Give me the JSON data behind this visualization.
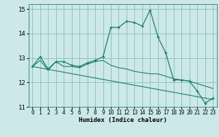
{
  "xlabel": "Humidex (Indice chaleur)",
  "bg_color": "#cce8e8",
  "line_color": "#1a7a6e",
  "grid_color": "#88bbbb",
  "xlim": [
    -0.5,
    23.5
  ],
  "ylim": [
    11.0,
    15.2
  ],
  "xticks": [
    0,
    1,
    2,
    3,
    4,
    5,
    6,
    7,
    8,
    9,
    10,
    11,
    12,
    13,
    14,
    15,
    16,
    17,
    18,
    19,
    20,
    21,
    22,
    23
  ],
  "yticks": [
    11,
    12,
    13,
    14,
    15
  ],
  "line1_x": [
    0,
    1,
    2,
    3,
    4,
    5,
    6,
    7,
    8,
    9,
    10,
    11,
    12,
    13,
    14,
    15,
    16,
    17,
    18,
    19,
    20,
    21,
    22,
    23
  ],
  "line1_y": [
    12.65,
    13.05,
    12.55,
    12.85,
    12.85,
    12.7,
    12.65,
    12.8,
    12.9,
    13.05,
    14.25,
    14.25,
    14.5,
    14.45,
    14.3,
    14.95,
    13.85,
    13.2,
    12.1,
    12.1,
    12.05,
    11.65,
    11.15,
    11.35
  ],
  "line2_x": [
    0,
    1,
    2,
    3,
    4,
    5,
    6,
    7,
    8,
    9,
    10,
    11,
    12,
    13,
    14,
    15,
    16,
    17,
    18,
    19,
    20,
    21,
    22,
    23
  ],
  "line2_y": [
    12.65,
    12.9,
    12.5,
    12.85,
    12.65,
    12.65,
    12.6,
    12.75,
    12.85,
    12.9,
    12.7,
    12.6,
    12.55,
    12.45,
    12.4,
    12.35,
    12.35,
    12.25,
    12.15,
    12.1,
    12.05,
    11.95,
    11.85,
    11.75
  ],
  "line3_x": [
    0,
    23
  ],
  "line3_y": [
    12.65,
    11.3
  ]
}
